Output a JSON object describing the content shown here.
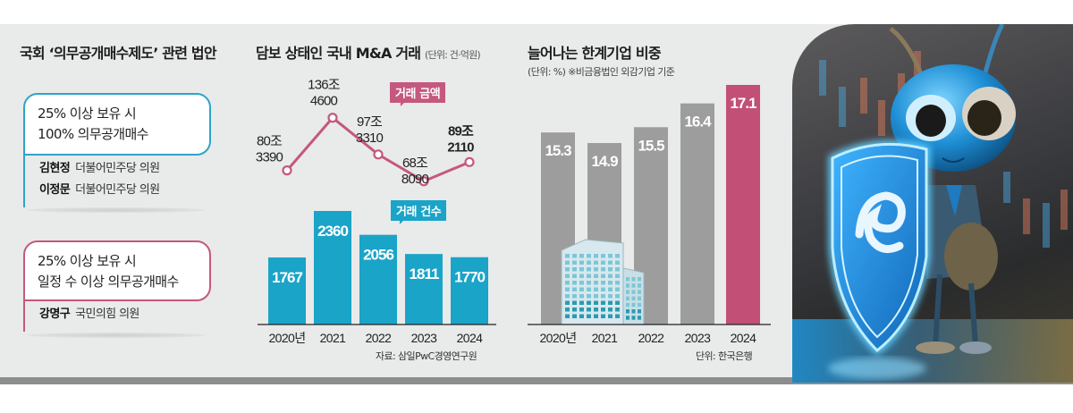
{
  "panel_left": {
    "title": "국회 ‘의무공개매수제도’ 관련 법안",
    "bills": [
      {
        "lines": [
          "25% 이상 보유 시",
          "100% 의무공개매수"
        ],
        "accent": "#2ea4c9",
        "sponsors": [
          {
            "name": "김현정",
            "party": "더불어민주당 의원"
          },
          {
            "name": "이정문",
            "party": "더불어민주당 의원"
          }
        ]
      },
      {
        "lines": [
          "25% 이상 보유 시",
          "일정 수 이상 의무공개매수"
        ],
        "accent": "#c4587e",
        "sponsors": [
          {
            "name": "강명구",
            "party": "국민의힘 의원"
          }
        ]
      }
    ]
  },
  "panel_mid": {
    "title": "담보 상태인 국내 M&A 거래",
    "unit": "(단위: 건·억원)",
    "source": "자료: 삼일PwC경영연구원"
  },
  "panel_right": {
    "title": "늘어나는 한계기업 비중",
    "unit": "(단위: %)  ※비금융법인 외감기업 기준",
    "source": "단위: 한국은행"
  },
  "chart_data": [
    {
      "type": "line",
      "title": "거래 금액",
      "categories": [
        "2020년",
        "2021",
        "2022",
        "2023",
        "2024"
      ],
      "values": [
        803390,
        1364600,
        973310,
        688090,
        892110
      ],
      "labels": [
        [
          "80조",
          "3390"
        ],
        [
          "136조",
          "4600"
        ],
        [
          "97조",
          "3310"
        ],
        [
          "68조",
          "8090"
        ],
        [
          "89조",
          "2110"
        ]
      ],
      "unit": "억원",
      "color": "#c4587e"
    },
    {
      "type": "bar",
      "title": "거래 건수",
      "categories": [
        "2020년",
        "2021",
        "2022",
        "2023",
        "2024"
      ],
      "values": [
        1767,
        2360,
        2056,
        1811,
        1770
      ],
      "unit": "건",
      "color": "#1aa4c8"
    },
    {
      "type": "bar",
      "title": "늘어나는 한계기업 비중",
      "categories": [
        "2020년",
        "2021",
        "2022",
        "2023",
        "2024"
      ],
      "values": [
        15.3,
        14.9,
        15.5,
        16.4,
        17.1
      ],
      "value_labels": [
        "15.3",
        "14.9",
        "15.5",
        "16.4",
        "17.1"
      ],
      "unit": "%",
      "colors": [
        "#9d9d9d",
        "#9d9d9d",
        "#9d9d9d",
        "#9d9d9d",
        "#c24f76"
      ]
    }
  ],
  "illustration": {
    "description": "ant-mascot-with-shield"
  }
}
